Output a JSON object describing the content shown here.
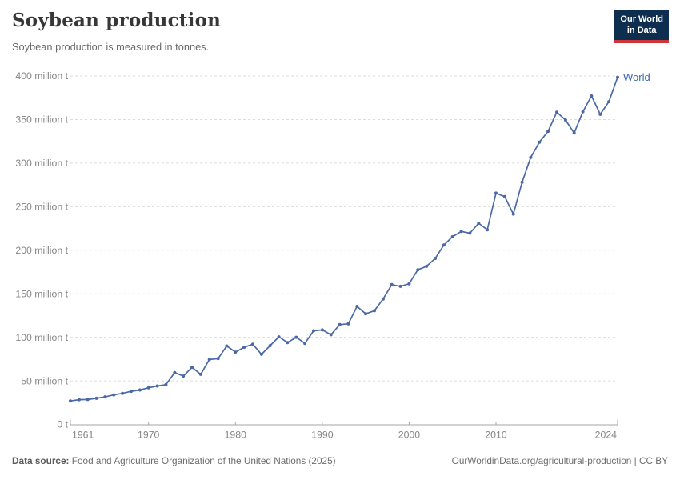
{
  "header": {
    "title": "Soybean production",
    "subtitle": "Soybean production is measured in tonnes."
  },
  "logo": {
    "line1": "Our World",
    "line2": "in Data",
    "bg_color": "#0d2e4e",
    "accent_color": "#cf3439"
  },
  "chart_data": {
    "type": "line",
    "title": "Soybean production",
    "unit": "tonnes",
    "xlim": [
      1961,
      2024
    ],
    "ylim": [
      0,
      400000000
    ],
    "ylim_million_t": [
      0,
      400
    ],
    "grid": "horizontal-dashed",
    "legend_position": "end-of-line-label",
    "x_ticks": [
      1961,
      1970,
      1980,
      1990,
      2000,
      2010,
      2024
    ],
    "x_tick_labels": [
      "1961",
      "1970",
      "1980",
      "1990",
      "2000",
      "2010",
      "2024"
    ],
    "y_ticks_million_t": [
      0,
      50,
      100,
      150,
      200,
      250,
      300,
      350,
      400
    ],
    "y_tick_labels": [
      "0 t",
      "50 million t",
      "100 million t",
      "150 million t",
      "200 million t",
      "250 million t",
      "300 million t",
      "350 million t",
      "400 million t"
    ],
    "series": [
      {
        "name": "World",
        "color": "#4a69a5",
        "label_color": "#3f68ac",
        "x": [
          1961,
          1962,
          1963,
          1964,
          1965,
          1966,
          1967,
          1968,
          1969,
          1970,
          1971,
          1972,
          1973,
          1974,
          1975,
          1976,
          1977,
          1978,
          1979,
          1980,
          1981,
          1982,
          1983,
          1984,
          1985,
          1986,
          1987,
          1988,
          1989,
          1990,
          1991,
          1992,
          1993,
          1994,
          1995,
          1996,
          1997,
          1998,
          1999,
          2000,
          2001,
          2002,
          2003,
          2004,
          2005,
          2006,
          2007,
          2008,
          2009,
          2010,
          2011,
          2012,
          2013,
          2014,
          2015,
          2016,
          2017,
          2018,
          2019,
          2020,
          2021,
          2022,
          2023,
          2024
        ],
        "values_million_t": [
          26.9,
          28.4,
          28.6,
          29.9,
          31.6,
          33.9,
          35.6,
          38.0,
          39.5,
          42.1,
          44.1,
          45.6,
          59.5,
          55.5,
          65.5,
          57.5,
          74.5,
          75.5,
          90.0,
          83.0,
          88.5,
          92.0,
          80.5,
          90.5,
          100.5,
          94.0,
          100.0,
          93.0,
          107.5,
          108.5,
          103.0,
          114.5,
          115.5,
          135.5,
          127.0,
          130.5,
          144.0,
          160.5,
          158.5,
          161.5,
          177.5,
          181.5,
          190.5,
          206.0,
          215.5,
          221.5,
          219.5,
          231.0,
          223.5,
          265.5,
          261.5,
          241.5,
          278.0,
          306.5,
          324.0,
          336.5,
          358.5,
          349.5,
          334.5,
          359.0,
          377.0,
          356.0,
          370.5,
          398.5
        ]
      }
    ],
    "colors": {
      "gridline": "#dcdcdc",
      "axis": "#a6a6a6",
      "tick_text": "#858585"
    }
  },
  "footer": {
    "source_label": "Data source:",
    "source_text": "Food and Agriculture Organization of the United Nations (2025)",
    "credit": "OurWorldinData.org/agricultural-production | CC BY"
  }
}
